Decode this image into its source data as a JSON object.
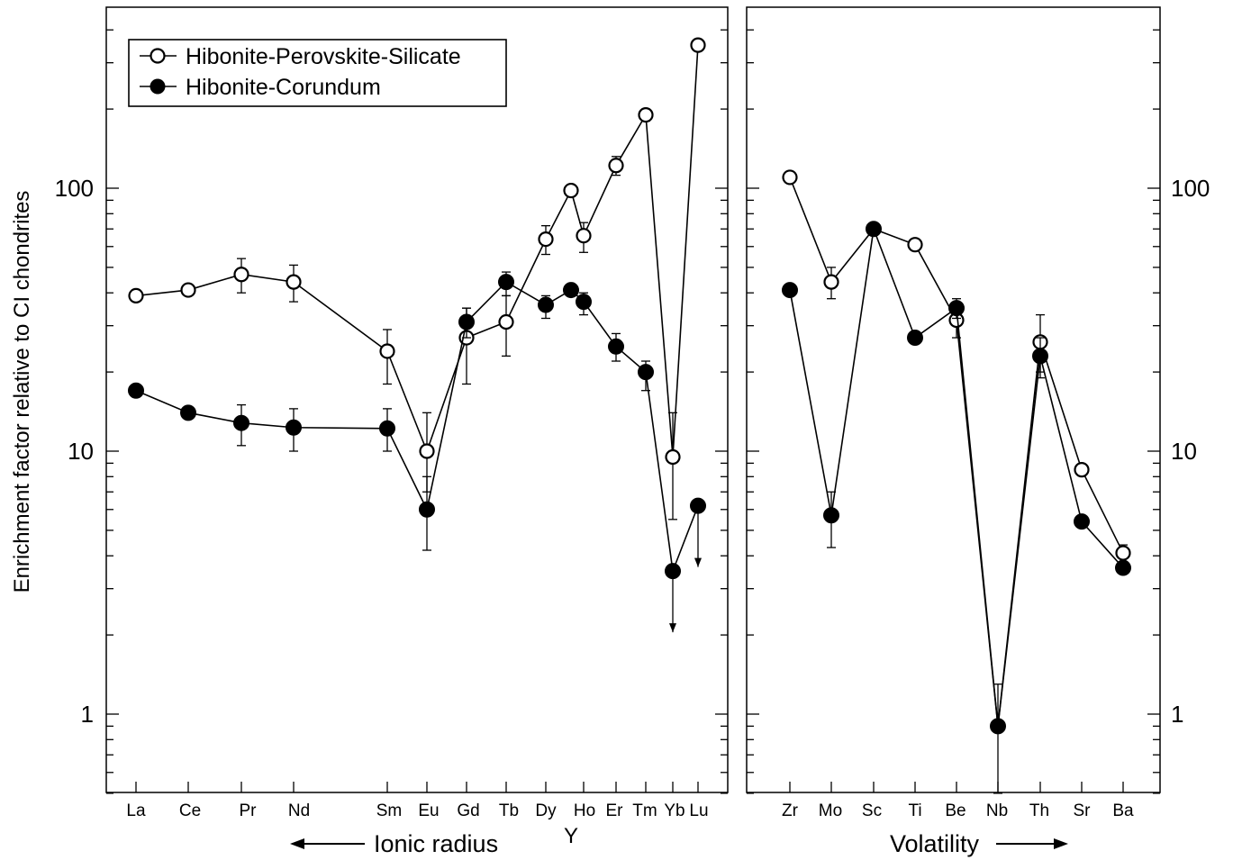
{
  "chart_data": {
    "type": "scatter",
    "scale": "log",
    "ylabel": "Enrichment factor relative to CI chondrites",
    "ylim": [
      0.5,
      400
    ],
    "yticks": [
      {
        "value": 1,
        "label": "1"
      },
      {
        "value": 10,
        "label": "10"
      },
      {
        "value": 100,
        "label": "100"
      }
    ],
    "legend": {
      "placement": "top-left",
      "entries": [
        "Hibonite-Perovskite-Silicate",
        "Hibonite-Corundum"
      ]
    },
    "series": [
      {
        "name": "Hibonite-Perovskite-Silicate",
        "marker": "open-circle",
        "color": "#000000"
      },
      {
        "name": "Hibonite-Corundum",
        "marker": "filled-circle",
        "color": "#000000"
      }
    ],
    "panels": [
      {
        "id": "ree",
        "xlabel": "Ionic radius",
        "xlabel_arrow": "left",
        "categories": [
          "La",
          "Ce",
          "Pr",
          "Nd",
          "Sm",
          "Eu",
          "Gd",
          "Tb",
          "Dy",
          "Ho",
          "Er",
          "Tm",
          "Yb",
          "Lu"
        ],
        "extra_label": "Y",
        "values": {
          "Hibonite-Perovskite-Silicate": [
            {
              "x": "La",
              "y": 39
            },
            {
              "x": "Ce",
              "y": 41
            },
            {
              "x": "Pr",
              "y": 47,
              "err": [
                40,
                54
              ]
            },
            {
              "x": "Nd",
              "y": 44,
              "err": [
                37,
                51
              ]
            },
            {
              "x": "Sm",
              "y": 24,
              "err": [
                18,
                29
              ]
            },
            {
              "x": "Eu",
              "y": 10,
              "err": [
                7,
                14
              ]
            },
            {
              "x": "Gd",
              "y": 27,
              "err": [
                18,
                35
              ]
            },
            {
              "x": "Tb",
              "y": 31,
              "err": [
                23,
                39
              ]
            },
            {
              "x": "Dy",
              "y": 64,
              "err": [
                56,
                72
              ]
            },
            {
              "x": "Y",
              "y": 98
            },
            {
              "x": "Ho",
              "y": 66,
              "err": [
                57,
                74
              ]
            },
            {
              "x": "Er",
              "y": 122,
              "err": [
                112,
                132
              ]
            },
            {
              "x": "Tm",
              "y": 190,
              "err": [
                180,
                200
              ]
            },
            {
              "x": "Yb",
              "y": 9.5,
              "err": [
                5.5,
                14
              ]
            },
            {
              "x": "Lu",
              "y": 350
            }
          ],
          "Hibonite-Corundum": [
            {
              "x": "La",
              "y": 17
            },
            {
              "x": "Ce",
              "y": 14
            },
            {
              "x": "Pr",
              "y": 12.8,
              "err": [
                10.5,
                15
              ]
            },
            {
              "x": "Nd",
              "y": 12.3,
              "err": [
                10,
                14.5
              ]
            },
            {
              "x": "Sm",
              "y": 12.2,
              "err": [
                10,
                14.5
              ]
            },
            {
              "x": "Eu",
              "y": 6,
              "err": [
                4.2,
                8
              ]
            },
            {
              "x": "Gd",
              "y": 31,
              "err": [
                27,
                35
              ]
            },
            {
              "x": "Tb",
              "y": 44,
              "err": [
                39,
                48
              ]
            },
            {
              "x": "Dy",
              "y": 36,
              "err": [
                32,
                39
              ]
            },
            {
              "x": "Y",
              "y": 41
            },
            {
              "x": "Ho",
              "y": 37,
              "err": [
                33,
                40
              ]
            },
            {
              "x": "Er",
              "y": 25,
              "err": [
                22,
                28
              ]
            },
            {
              "x": "Tm",
              "y": 20,
              "err": [
                17,
                22
              ]
            },
            {
              "x": "Yb",
              "y": 3.5,
              "upper_limit": true
            },
            {
              "x": "Lu",
              "y": 6.2,
              "upper_limit": true
            }
          ]
        }
      },
      {
        "id": "refractory",
        "xlabel": "Volatility",
        "xlabel_arrow": "right",
        "categories": [
          "Zr",
          "Mo",
          "Sc",
          "Ti",
          "Be",
          "Nb",
          "Th",
          "Sr",
          "Ba"
        ],
        "values": {
          "Hibonite-Perovskite-Silicate": [
            {
              "x": "Zr",
              "y": 110
            },
            {
              "x": "Mo",
              "y": 44,
              "err": [
                38,
                50
              ]
            },
            {
              "x": "Sc",
              "y": 70
            },
            {
              "x": "Ti",
              "y": 61
            },
            {
              "x": "Be",
              "y": 31.5,
              "err": [
                27,
                36
              ]
            },
            {
              "x": "Nb",
              "y": 0.9,
              "err": [
                0.5,
                1.3
              ]
            },
            {
              "x": "Th",
              "y": 26,
              "err": [
                20,
                33
              ]
            },
            {
              "x": "Sr",
              "y": 8.5
            },
            {
              "x": "Ba",
              "y": 4.1,
              "err": [
                3.8,
                4.4
              ]
            }
          ],
          "Hibonite-Corundum": [
            {
              "x": "Zr",
              "y": 41
            },
            {
              "x": "Mo",
              "y": 5.7,
              "err": [
                4.3,
                7
              ]
            },
            {
              "x": "Sc",
              "y": 70
            },
            {
              "x": "Ti",
              "y": 27
            },
            {
              "x": "Be",
              "y": 35,
              "err": [
                32,
                38
              ]
            },
            {
              "x": "Nb",
              "y": 0.9
            },
            {
              "x": "Th",
              "y": 23,
              "err": [
                19,
                27
              ]
            },
            {
              "x": "Sr",
              "y": 5.4
            },
            {
              "x": "Ba",
              "y": 3.6
            }
          ]
        }
      }
    ]
  }
}
